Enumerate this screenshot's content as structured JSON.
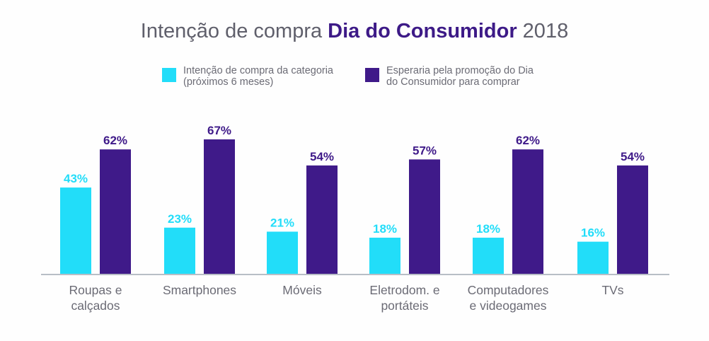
{
  "title": {
    "prefix": "Intenção de compra ",
    "highlight": "Dia do Consumidor",
    "suffix": " 2018"
  },
  "colors": {
    "series_a": "#22ddf9",
    "series_b": "#3f1a89",
    "axis": "#b8bec6",
    "text": "#6b6b75"
  },
  "legend": [
    {
      "line1": "Intenção de compra da categoria",
      "line2": "(próximos 6 meses)"
    },
    {
      "line1": "Esperaria pela promoção do Dia",
      "line2": "do Consumidor para comprar"
    }
  ],
  "chart_data": {
    "type": "bar",
    "title": "Intenção de compra Dia do Consumidor 2018",
    "categories": [
      [
        "Roupas e",
        "calçados"
      ],
      [
        "Smartphones"
      ],
      [
        "Móveis"
      ],
      [
        "Eletrodom. e",
        "portáteis"
      ],
      [
        "Computadores",
        "e videogames"
      ],
      [
        "TVs"
      ]
    ],
    "series": [
      {
        "name": "Intenção de compra da categoria (próximos 6 meses)",
        "values": [
          43,
          23,
          21,
          18,
          18,
          16
        ],
        "labels": [
          "43%",
          "23%",
          "21%",
          "18%",
          "18%",
          "16%"
        ]
      },
      {
        "name": "Esperaria pela promoção do Dia do Consumidor para comprar",
        "values": [
          62,
          67,
          54,
          57,
          62,
          54
        ],
        "labels": [
          "62%",
          "67%",
          "54%",
          "57%",
          "62%",
          "54%"
        ]
      }
    ],
    "ylim": [
      0,
      67
    ],
    "grid": false,
    "legend_position": "top-center"
  }
}
